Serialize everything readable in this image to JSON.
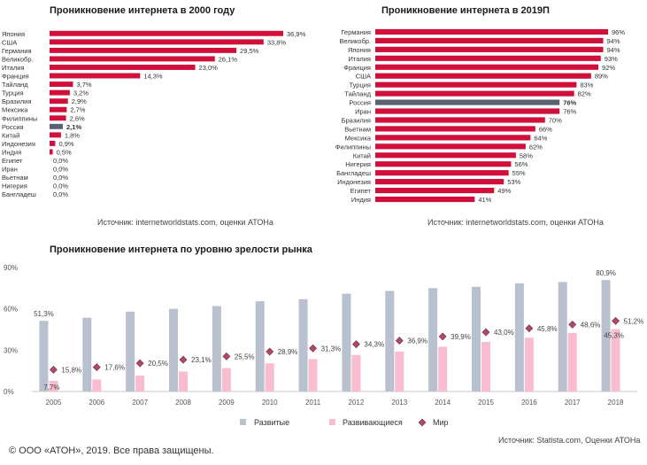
{
  "palette": {
    "red": "#d0103a",
    "russia": "#5a6270",
    "developed": "#b9c1cf",
    "developing": "#f8bed0",
    "world": "#b3476a"
  },
  "top_left": {
    "title": "Проникновение интернета в 2000 году",
    "source": "Источник: internetworldstats.com, оценки АТОНа"
  },
  "top_right": {
    "title": "Проникновение интернета в 2019П",
    "source": "Источник: internetworldstats.com, оценки АТОНа"
  },
  "bottom": {
    "title": "Проникновение интернета по уровню зрелости рынка",
    "source": "Источник: Statista.com, Оценки АТОНа"
  },
  "footer": {
    "copyright": "© ООО «АТОН», 2019. Все права защищены."
  },
  "chart_data": [
    {
      "type": "bar",
      "orientation": "horizontal",
      "title": "Проникновение интернета в 2000 году",
      "categories": [
        "Япония",
        "США",
        "Германия",
        "Великобр.",
        "Италия",
        "Франция",
        "Тайланд",
        "Турция",
        "Бразилия",
        "Мексика",
        "Филиппины",
        "Россия",
        "Китай",
        "Индонезия",
        "Индия",
        "Египет",
        "Иран",
        "Вьетнам",
        "Нигерия",
        "Бангладеш"
      ],
      "values": [
        36.9,
        33.8,
        29.5,
        26.1,
        23.0,
        14.3,
        3.7,
        3.2,
        2.9,
        2.7,
        2.6,
        2.1,
        1.8,
        0.9,
        0.5,
        0.0,
        0.0,
        0.0,
        0.0,
        0.0
      ],
      "value_labels": [
        "36,9%",
        "33,8%",
        "29,5%",
        "26,1%",
        "23,0%",
        "14,3%",
        "3,7%",
        "3,2%",
        "2,9%",
        "2,7%",
        "2,6%",
        "2,1%",
        "1,8%",
        "0,9%",
        "0,5%",
        "0,0%",
        "0,0%",
        "0,0%",
        "0,0%",
        "0,0%"
      ],
      "highlight": "Россия"
    },
    {
      "type": "bar",
      "orientation": "horizontal",
      "title": "Проникновение интернета в 2019П",
      "categories": [
        "Германия",
        "Великобр.",
        "Япония",
        "Италия",
        "Франция",
        "США",
        "Турция",
        "Тайланд",
        "Россия",
        "Иран",
        "Бразилия",
        "Вьетнам",
        "Мексика",
        "Филиппины",
        "Китай",
        "Нигерия",
        "Бангладеш",
        "Индонезия",
        "Египет",
        "Индия"
      ],
      "values": [
        96,
        94,
        94,
        93,
        92,
        89,
        83,
        82,
        76,
        76,
        70,
        66,
        64,
        62,
        58,
        56,
        55,
        53,
        49,
        41
      ],
      "value_labels": [
        "96%",
        "94%",
        "94%",
        "93%",
        "92%",
        "89%",
        "83%",
        "82%",
        "76%",
        "76%",
        "70%",
        "66%",
        "64%",
        "62%",
        "58%",
        "56%",
        "55%",
        "53%",
        "49%",
        "41%"
      ],
      "highlight": "Россия"
    },
    {
      "type": "bar",
      "title": "Проникновение интернета по уровню зрелости рынка",
      "categories": [
        "2005",
        "2006",
        "2007",
        "2008",
        "2009",
        "2010",
        "2011",
        "2012",
        "2013",
        "2014",
        "2015",
        "2016",
        "2017",
        "2018"
      ],
      "ylim": [
        0,
        90
      ],
      "yticks": [
        "0%",
        "30%",
        "60%",
        "90%"
      ],
      "series": [
        {
          "name": "Развитые",
          "kind": "bar",
          "values": [
            51.3,
            53.5,
            58.0,
            60.0,
            62.0,
            65.5,
            67.0,
            71.0,
            73.0,
            75.0,
            76.0,
            78.5,
            79.5,
            80.9
          ],
          "labels": {
            "0": "51,3%",
            "13": "80,9%"
          }
        },
        {
          "name": "Развивающиеся",
          "kind": "bar",
          "values": [
            7.7,
            8.7,
            11.5,
            14.5,
            17.0,
            20.5,
            23.5,
            26.5,
            29.0,
            32.5,
            36.0,
            39.0,
            42.5,
            45.3
          ],
          "labels": {
            "0": "7,7%",
            "13": "45,3%"
          }
        },
        {
          "name": "Мир",
          "kind": "marker",
          "values": [
            15.8,
            17.6,
            20.5,
            23.1,
            25.5,
            28.9,
            31.3,
            34.3,
            36.9,
            39.9,
            43.0,
            45.8,
            48.6,
            51.2
          ],
          "labels": {
            "0": "15,8%",
            "1": "17,6%",
            "2": "20,5%",
            "3": "23,1%",
            "4": "25,5%",
            "5": "28,9%",
            "6": "31,3%",
            "7": "34,3%",
            "8": "36,9%",
            "9": "39,9%",
            "10": "43,0%",
            "11": "45,8%",
            "12": "48,6%",
            "13": "51,2%"
          }
        }
      ],
      "legend_position": "bottom"
    }
  ]
}
